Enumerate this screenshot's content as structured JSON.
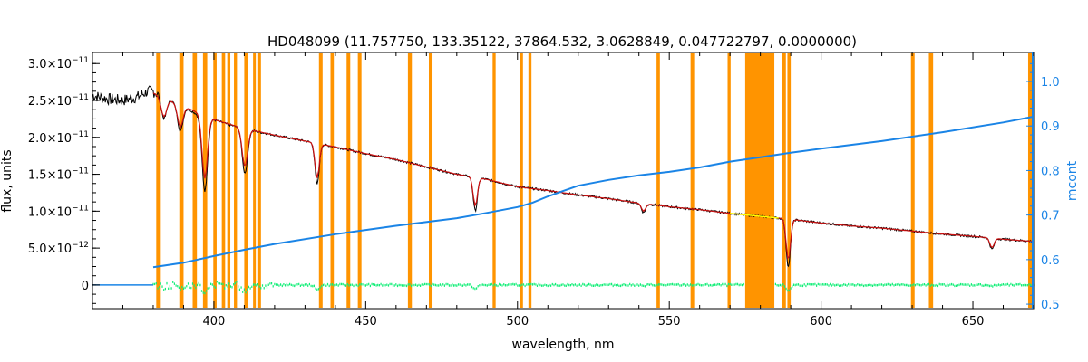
{
  "chart_data": {
    "type": "line",
    "title": "HD048099    (11.757750, 133.35122, 37864.532, 3.0628849, 0.047722797, 0.0000000)",
    "xlabel": "wavelength, nm",
    "ylabel": "flux, units",
    "y2label": "mcont",
    "xlim": [
      360,
      670
    ],
    "ylim": [
      -3.2e-12,
      3.15e-11
    ],
    "y2lim": [
      0.49,
      1.065
    ],
    "grid": false,
    "legend": "none",
    "x_ticks": [
      400,
      450,
      500,
      550,
      600,
      650
    ],
    "x_tick_labels": [
      "400",
      "450",
      "500",
      "550",
      "600",
      "650"
    ],
    "y_ticks": [
      0,
      5e-12,
      1e-11,
      1.5e-11,
      2e-11,
      2.5e-11,
      3e-11
    ],
    "y_tick_labels": [
      {
        "mant": "0",
        "exp": ""
      },
      {
        "mant": "5.0×10",
        "exp": "−12"
      },
      {
        "mant": "1.0×10",
        "exp": "−11"
      },
      {
        "mant": "1.5×10",
        "exp": "−11"
      },
      {
        "mant": "2.0×10",
        "exp": "−11"
      },
      {
        "mant": "2.5×10",
        "exp": "−11"
      },
      {
        "mant": "3.0×10",
        "exp": "−11"
      }
    ],
    "y2_ticks": [
      0.5,
      0.6,
      0.7,
      0.8,
      0.9,
      1.0
    ],
    "y2_tick_labels": [
      "0.5",
      "0.6",
      "0.7",
      "0.8",
      "0.9",
      "1.0"
    ],
    "colors": {
      "observed": "#000000",
      "model": "#cc1111",
      "mask": "#ff9400",
      "continuum": "#1a84e6",
      "residual": "#11ee77",
      "highlight": "#ffff00",
      "axis_right": "#1a84e6"
    },
    "masked_regions": [
      [
        381,
        382.5
      ],
      [
        388.6,
        390
      ],
      [
        393,
        394.4
      ],
      [
        396.4,
        397.8
      ],
      [
        399.8,
        400.9
      ],
      [
        402.6,
        403.7
      ],
      [
        404.4,
        405.4
      ],
      [
        406.6,
        407.6
      ],
      [
        410,
        411.1
      ],
      [
        412.9,
        413.8
      ],
      [
        414.6,
        415.5
      ],
      [
        434.6,
        435.8
      ],
      [
        438.4,
        439.5
      ],
      [
        443.7,
        444.9
      ],
      [
        447.4,
        448.6
      ],
      [
        463.9,
        465.2
      ],
      [
        470.8,
        472
      ],
      [
        491.8,
        492.8
      ],
      [
        500.8,
        501.8
      ],
      [
        503.6,
        504.6
      ],
      [
        545.8,
        546.9
      ],
      [
        557,
        558.2
      ],
      [
        569.2,
        570.2
      ],
      [
        575,
        584.6
      ],
      [
        587,
        588.4
      ],
      [
        588.9,
        590
      ],
      [
        629.6,
        630.8
      ],
      [
        635.5,
        636.9
      ],
      [
        668.2,
        669.7
      ]
    ],
    "series": [
      {
        "role": "observed",
        "x": [
          360,
          365,
          370,
          375,
          378,
          380,
          382,
          385,
          390,
          395,
          400,
          405,
          410,
          415,
          420,
          430,
          440,
          450,
          460,
          470,
          480,
          490,
          500,
          510,
          520,
          530,
          540,
          550,
          560,
          570,
          580,
          590,
          600,
          610,
          620,
          630,
          640,
          650,
          660,
          670
        ],
        "y": [
          2.57e-11,
          2.52e-11,
          2.5e-11,
          2.55e-11,
          2.62e-11,
          2.62e-11,
          2.6e-11,
          2.52e-11,
          2.42e-11,
          2.3e-11,
          2.24e-11,
          2.17e-11,
          2.12e-11,
          2.07e-11,
          2.03e-11,
          1.95e-11,
          1.87e-11,
          1.78e-11,
          1.7e-11,
          1.6e-11,
          1.5e-11,
          1.43e-11,
          1.33e-11,
          1.28e-11,
          1.22e-11,
          1.17e-11,
          1.11e-11,
          1.06e-11,
          1.02e-11,
          9.7e-12,
          9.3e-12,
          8.9e-12,
          8.4e-12,
          8e-12,
          7.7e-12,
          7.3e-12,
          6.9e-12,
          6.6e-12,
          6.2e-12,
          5.9e-12
        ]
      },
      {
        "role": "model",
        "x": [
          380,
          390,
          400,
          410,
          420,
          430,
          440,
          450,
          460,
          470,
          480,
          490,
          500,
          510,
          520,
          530,
          540,
          550,
          560,
          570,
          580,
          590,
          600,
          610,
          620,
          630,
          640,
          650,
          660,
          670
        ],
        "y": [
          2.6e-11,
          2.42e-11,
          2.24e-11,
          2.12e-11,
          2.03e-11,
          1.95e-11,
          1.87e-11,
          1.78e-11,
          1.7e-11,
          1.6e-11,
          1.5e-11,
          1.43e-11,
          1.33e-11,
          1.28e-11,
          1.22e-11,
          1.17e-11,
          1.11e-11,
          1.06e-11,
          1.02e-11,
          9.7e-12,
          9.3e-12,
          8.9e-12,
          8.4e-12,
          8e-12,
          7.7e-12,
          7.3e-12,
          6.9e-12,
          6.6e-12,
          6.2e-12,
          5.9e-12
        ]
      },
      {
        "role": "continuum",
        "axis": "right",
        "x": [
          380,
          390,
          400,
          410,
          420,
          440,
          460,
          480,
          490,
          500,
          505,
          510,
          515,
          520,
          530,
          540,
          550,
          560,
          570,
          580,
          590,
          600,
          620,
          640,
          660,
          670
        ],
        "y": [
          0.583,
          0.593,
          0.608,
          0.622,
          0.635,
          0.657,
          0.676,
          0.693,
          0.705,
          0.718,
          0.728,
          0.742,
          0.754,
          0.766,
          0.779,
          0.789,
          0.797,
          0.807,
          0.82,
          0.83,
          0.84,
          0.849,
          0.866,
          0.886,
          0.908,
          0.921
        ]
      },
      {
        "role": "residual",
        "x": [
          380,
          670
        ],
        "y": [
          0,
          0
        ]
      }
    ],
    "absorption_lines": [
      {
        "x": 383.5,
        "depth": 3e-12
      },
      {
        "x": 388.9,
        "depth": 3.5e-12
      },
      {
        "x": 397,
        "depth": 1e-11
      },
      {
        "x": 410.2,
        "depth": 6e-12
      },
      {
        "x": 434,
        "depth": 5.5e-12
      },
      {
        "x": 486.1,
        "depth": 4.5e-12
      },
      {
        "x": 541.5,
        "depth": 1.2e-12
      },
      {
        "x": 589.2,
        "depth": 6.5e-12
      },
      {
        "x": 656.3,
        "depth": 1.5e-12
      }
    ]
  }
}
